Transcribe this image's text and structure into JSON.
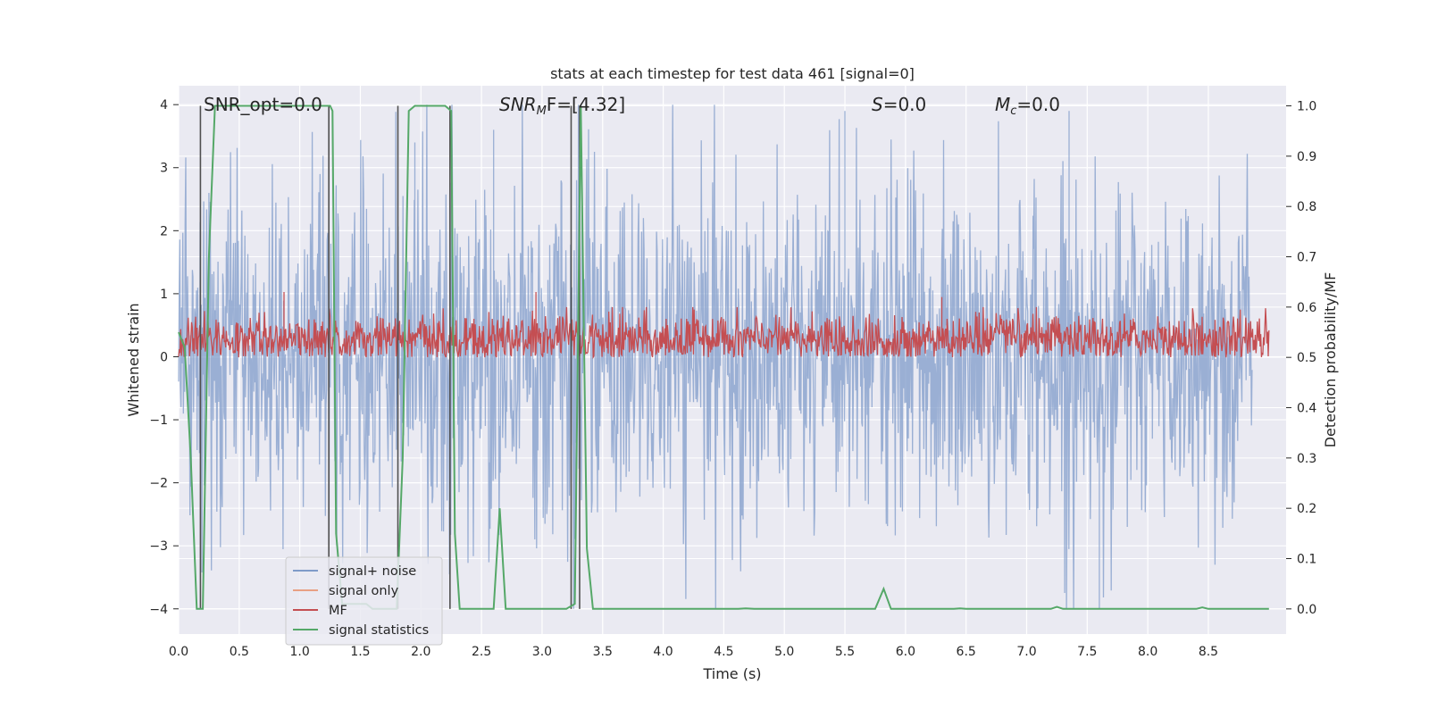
{
  "chart_data": {
    "type": "line",
    "title": "stats at each timestep for test data 461 [signal=0]",
    "xlabel": "Time (s)",
    "ylabel_left": "Whitened strain",
    "ylabel_right": "Detection probability/MF",
    "xlim": [
      0.0,
      9.0
    ],
    "ylim_left": [
      -4.4,
      4.3
    ],
    "ylim_right": [
      -0.05,
      1.04
    ],
    "x_ticks": [
      "0.0",
      "0.5",
      "1.0",
      "1.5",
      "2.0",
      "2.5",
      "3.0",
      "3.5",
      "4.0",
      "4.5",
      "5.0",
      "5.5",
      "6.0",
      "6.5",
      "7.0",
      "7.5",
      "8.0",
      "8.5"
    ],
    "y_ticks_left": [
      "4",
      "3",
      "2",
      "1",
      "0",
      "−1",
      "−2",
      "−3",
      "−4"
    ],
    "y_ticks_right": [
      "1.0",
      "0.9",
      "0.8",
      "0.7",
      "0.6",
      "0.5",
      "0.4",
      "0.3",
      "0.2",
      "0.1",
      "0.0"
    ],
    "grid": true,
    "legend_position": "lower-left",
    "annotations": {
      "snr_opt": "SNR_opt=0.0",
      "snr_mf_prefix": "SNR",
      "snr_mf_sub": "M",
      "snr_mf_rest": "F=[4.32]",
      "s_label": "S",
      "s_rest": "=0.0",
      "mc_label": "M",
      "mc_sub": "c",
      "mc_rest": "=0.0"
    },
    "series": [
      {
        "name": "signal+ noise",
        "color": "#7f9bc9",
        "axis": "left",
        "description_range": [
          -4.0,
          4.0
        ],
        "notable_peaks": [
          [
            0.25,
            2.6
          ],
          [
            1.95,
            3.4
          ],
          [
            2.6,
            3.6
          ],
          [
            3.3,
            4.0
          ],
          [
            5.5,
            3.9
          ],
          [
            7.35,
            3.9
          ],
          [
            7.6,
            -4.0
          ]
        ]
      },
      {
        "name": "signal only",
        "color": "#e8a084",
        "axis": "left",
        "values": []
      },
      {
        "name": "MF",
        "color": "#c44e52",
        "axis": "right",
        "description_range": [
          0.5,
          0.62
        ],
        "notable_peaks": [
          [
            0.87,
            0.63
          ],
          [
            2.95,
            0.63
          ],
          [
            6.3,
            0.62
          ]
        ]
      },
      {
        "name": "signal statistics",
        "color": "#55a868",
        "axis": "right",
        "x": [
          0.0,
          0.05,
          0.1,
          0.15,
          0.2,
          0.25,
          0.3,
          0.4,
          0.5,
          0.6,
          0.7,
          0.8,
          0.9,
          1.0,
          1.1,
          1.2,
          1.25,
          1.27,
          1.3,
          1.35,
          1.4,
          1.45,
          1.5,
          1.55,
          1.6,
          1.65,
          1.7,
          1.75,
          1.8,
          1.85,
          1.9,
          1.95,
          2.0,
          2.05,
          2.1,
          2.15,
          2.2,
          2.25,
          2.28,
          2.32,
          2.4,
          2.5,
          2.6,
          2.65,
          2.7,
          2.75,
          2.8,
          2.9,
          3.0,
          3.1,
          3.2,
          3.27,
          3.32,
          3.37,
          3.42,
          3.5,
          4.0,
          4.5,
          4.62,
          4.68,
          4.75,
          5.0,
          5.5,
          5.75,
          5.82,
          5.88,
          6.0,
          6.4,
          6.45,
          6.5,
          7.0,
          7.2,
          7.25,
          7.3,
          7.5,
          8.0,
          8.4,
          8.45,
          8.5,
          9.0
        ],
        "y": [
          0.55,
          0.52,
          0.3,
          0.0,
          0.0,
          0.7,
          1.0,
          1.0,
          1.0,
          1.0,
          1.0,
          1.0,
          1.0,
          1.0,
          1.0,
          1.0,
          1.0,
          0.99,
          0.15,
          0.01,
          0.01,
          0.01,
          0.01,
          0.01,
          0.0,
          0.0,
          0.0,
          0.0,
          0.0,
          0.3,
          0.99,
          1.0,
          1.0,
          1.0,
          1.0,
          1.0,
          1.0,
          0.99,
          0.15,
          0.0,
          0.0,
          0.0,
          0.0,
          0.2,
          0.0,
          0.0,
          0.0,
          0.0,
          0.0,
          0.0,
          0.0,
          0.01,
          1.0,
          0.12,
          0.0,
          0.0,
          0.0,
          0.0,
          0.0,
          0.001,
          0.0,
          0.0,
          0.0,
          0.0,
          0.04,
          0.0,
          0.0,
          0.0,
          0.001,
          0.0,
          0.0,
          0.0,
          0.004,
          0.0,
          0.0,
          0.0,
          0.0,
          0.003,
          0.0,
          0.0
        ]
      }
    ],
    "vertical_markers": {
      "color": "#505050",
      "x": [
        0.18,
        1.24,
        1.81,
        2.24,
        3.24,
        3.31
      ]
    }
  }
}
